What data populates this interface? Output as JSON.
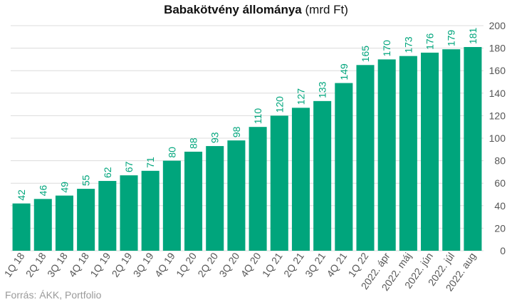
{
  "chart_data": {
    "type": "bar",
    "title": "Babakötvény állománya",
    "title_unit": "(mrd Ft)",
    "categories": [
      "1Q 18",
      "2Q 18",
      "3Q 18",
      "4Q 18",
      "1Q 19",
      "2Q 19",
      "3Q 19",
      "4Q 19",
      "1Q 20",
      "2Q 20",
      "3Q 20",
      "4Q 20",
      "1Q 21",
      "2Q 21",
      "3Q 21",
      "4Q 21",
      "1Q 22",
      "2022. ápr",
      "2022. máj",
      "2022. jún",
      "2022. júl",
      "2022. aug"
    ],
    "values": [
      42,
      46,
      49,
      55,
      62,
      67,
      71,
      80,
      88,
      93,
      98,
      110,
      120,
      127,
      133,
      149,
      165,
      170,
      173,
      176,
      179,
      181
    ],
    "ylim": [
      0,
      200
    ],
    "yticks": [
      0,
      20,
      40,
      60,
      80,
      100,
      120,
      140,
      160,
      180,
      200
    ],
    "y_axis_position": "right",
    "grid": true,
    "xlabel": "",
    "ylabel": "",
    "colors": {
      "bar": "#00a57c",
      "label": "#00a57c",
      "grid": "#dcdcdc",
      "tick": "#555555"
    }
  },
  "source": "Forrás: ÁKK, Portfolio"
}
